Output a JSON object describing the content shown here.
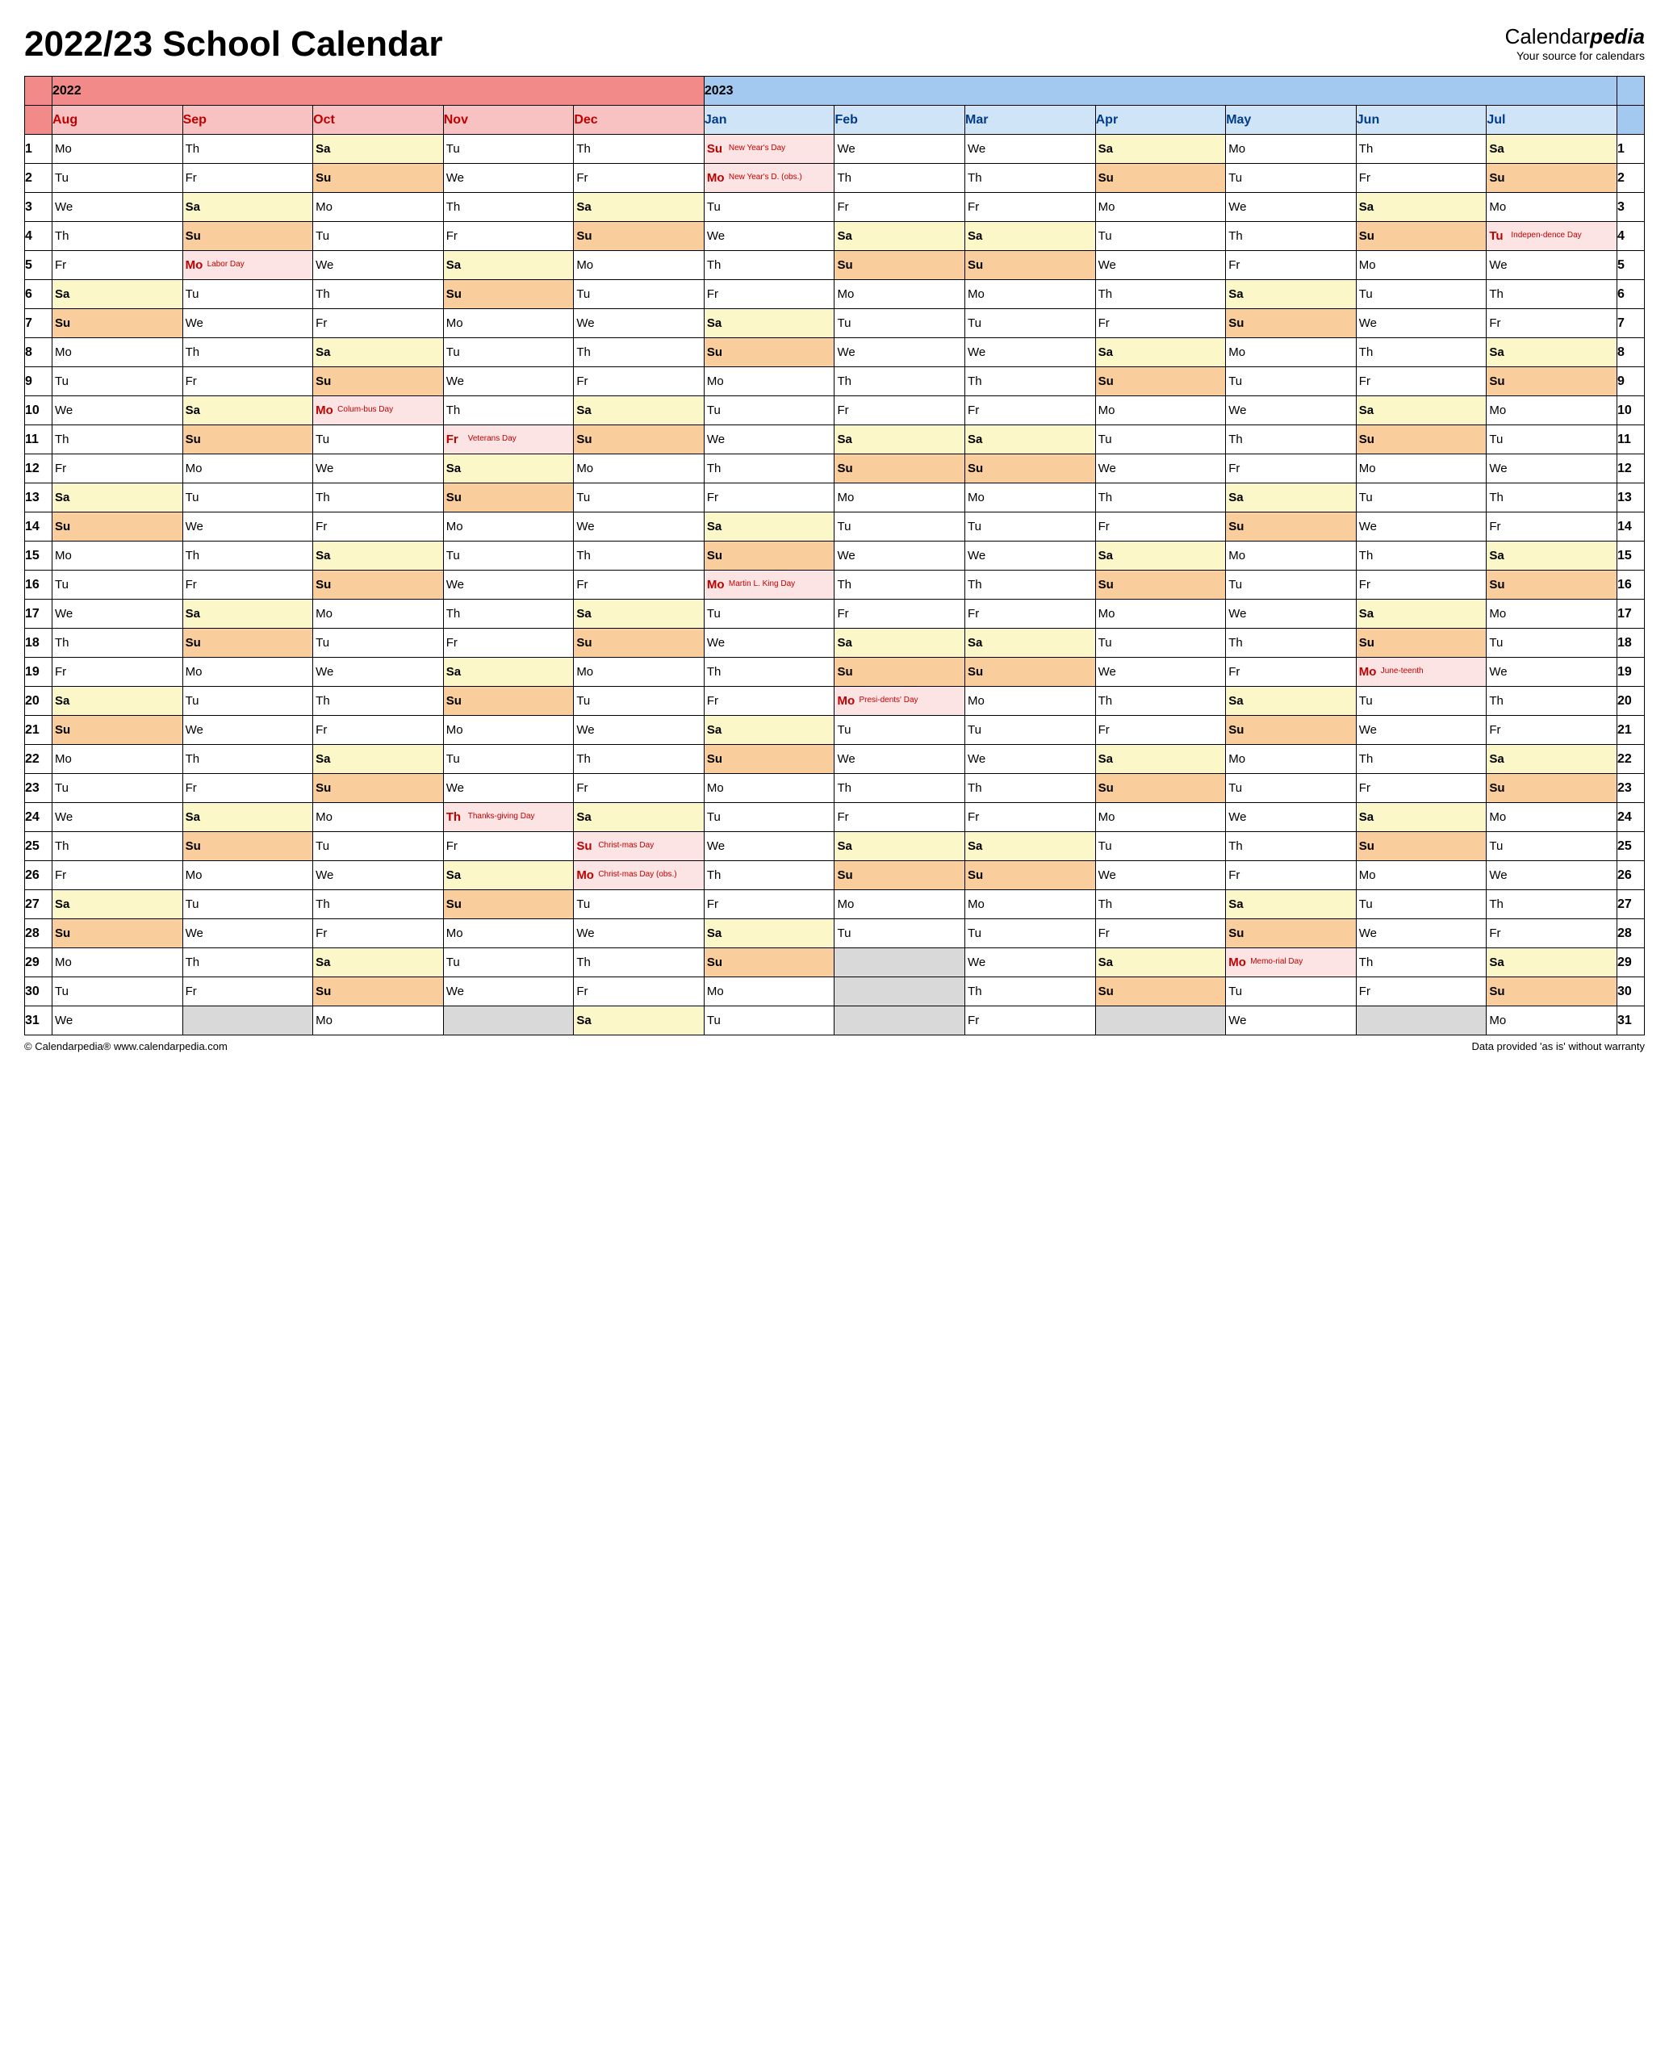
{
  "title": "2022/23 School Calendar",
  "brand": {
    "name_a": "Calendar",
    "name_b": "pedia",
    "tagline": "Your source for calendars"
  },
  "footer": {
    "left": "© Calendarpedia®   www.calendarpedia.com",
    "right": "Data provided 'as is' without warranty"
  },
  "colors": {
    "year_2022": "#f28a8a",
    "year_2023": "#a3c9f0",
    "month_2022": "#f9c2c2",
    "month_2023": "#d0e4f7",
    "sat": "#fcf7c9",
    "sun": "#f9cd9c",
    "hol": "#fde4e4",
    "empty": "#d9d9d9",
    "red": "#c00000",
    "blue": "#003c8a"
  },
  "years": {
    "a": "2022",
    "b": "2023"
  },
  "months": [
    "Aug",
    "Sep",
    "Oct",
    "Nov",
    "Dec",
    "Jan",
    "Feb",
    "Mar",
    "Apr",
    "May",
    "Jun",
    "Jul"
  ],
  "month_year": [
    2022,
    2022,
    2022,
    2022,
    2022,
    2023,
    2023,
    2023,
    2023,
    2023,
    2023,
    2023
  ],
  "days": 31,
  "grid": [
    [
      [
        "Mo"
      ],
      [
        "Th"
      ],
      [
        "Sa",
        "s"
      ],
      [
        "Tu"
      ],
      [
        "Th"
      ],
      [
        "Su",
        "h",
        "New Year's Day"
      ],
      [
        "We"
      ],
      [
        "We"
      ],
      [
        "Sa",
        "s"
      ],
      [
        "Mo"
      ],
      [
        "Th"
      ],
      [
        "Sa",
        "s"
      ]
    ],
    [
      [
        "Tu"
      ],
      [
        "Fr"
      ],
      [
        "Su",
        "u"
      ],
      [
        "We"
      ],
      [
        "Fr"
      ],
      [
        "Mo",
        "h",
        "New Year's D. (obs.)"
      ],
      [
        "Th"
      ],
      [
        "Th"
      ],
      [
        "Su",
        "u"
      ],
      [
        "Tu"
      ],
      [
        "Fr"
      ],
      [
        "Su",
        "u"
      ]
    ],
    [
      [
        "We"
      ],
      [
        "Sa",
        "s"
      ],
      [
        "Mo"
      ],
      [
        "Th"
      ],
      [
        "Sa",
        "s"
      ],
      [
        "Tu"
      ],
      [
        "Fr"
      ],
      [
        "Fr"
      ],
      [
        "Mo"
      ],
      [
        "We"
      ],
      [
        "Sa",
        "s"
      ],
      [
        "Mo"
      ]
    ],
    [
      [
        "Th"
      ],
      [
        "Su",
        "u"
      ],
      [
        "Tu"
      ],
      [
        "Fr"
      ],
      [
        "Su",
        "u"
      ],
      [
        "We"
      ],
      [
        "Sa",
        "s"
      ],
      [
        "Sa",
        "s"
      ],
      [
        "Tu"
      ],
      [
        "Th"
      ],
      [
        "Su",
        "u"
      ],
      [
        "Tu",
        "h",
        "Indepen-dence Day"
      ]
    ],
    [
      [
        "Fr"
      ],
      [
        "Mo",
        "h",
        "Labor Day"
      ],
      [
        "We"
      ],
      [
        "Sa",
        "s"
      ],
      [
        "Mo"
      ],
      [
        "Th"
      ],
      [
        "Su",
        "u"
      ],
      [
        "Su",
        "u"
      ],
      [
        "We"
      ],
      [
        "Fr"
      ],
      [
        "Mo"
      ],
      [
        "We"
      ]
    ],
    [
      [
        "Sa",
        "s"
      ],
      [
        "Tu"
      ],
      [
        "Th"
      ],
      [
        "Su",
        "u"
      ],
      [
        "Tu"
      ],
      [
        "Fr"
      ],
      [
        "Mo"
      ],
      [
        "Mo"
      ],
      [
        "Th"
      ],
      [
        "Sa",
        "s"
      ],
      [
        "Tu"
      ],
      [
        "Th"
      ]
    ],
    [
      [
        "Su",
        "u"
      ],
      [
        "We"
      ],
      [
        "Fr"
      ],
      [
        "Mo"
      ],
      [
        "We"
      ],
      [
        "Sa",
        "s"
      ],
      [
        "Tu"
      ],
      [
        "Tu"
      ],
      [
        "Fr"
      ],
      [
        "Su",
        "u"
      ],
      [
        "We"
      ],
      [
        "Fr"
      ]
    ],
    [
      [
        "Mo"
      ],
      [
        "Th"
      ],
      [
        "Sa",
        "s"
      ],
      [
        "Tu"
      ],
      [
        "Th"
      ],
      [
        "Su",
        "u"
      ],
      [
        "We"
      ],
      [
        "We"
      ],
      [
        "Sa",
        "s"
      ],
      [
        "Mo"
      ],
      [
        "Th"
      ],
      [
        "Sa",
        "s"
      ]
    ],
    [
      [
        "Tu"
      ],
      [
        "Fr"
      ],
      [
        "Su",
        "u"
      ],
      [
        "We"
      ],
      [
        "Fr"
      ],
      [
        "Mo"
      ],
      [
        "Th"
      ],
      [
        "Th"
      ],
      [
        "Su",
        "u"
      ],
      [
        "Tu"
      ],
      [
        "Fr"
      ],
      [
        "Su",
        "u"
      ]
    ],
    [
      [
        "We"
      ],
      [
        "Sa",
        "s"
      ],
      [
        "Mo",
        "h",
        "Colum-bus Day"
      ],
      [
        "Th"
      ],
      [
        "Sa",
        "s"
      ],
      [
        "Tu"
      ],
      [
        "Fr"
      ],
      [
        "Fr"
      ],
      [
        "Mo"
      ],
      [
        "We"
      ],
      [
        "Sa",
        "s"
      ],
      [
        "Mo"
      ]
    ],
    [
      [
        "Th"
      ],
      [
        "Su",
        "u"
      ],
      [
        "Tu"
      ],
      [
        "Fr",
        "h",
        "Veterans Day"
      ],
      [
        "Su",
        "u"
      ],
      [
        "We"
      ],
      [
        "Sa",
        "s"
      ],
      [
        "Sa",
        "s"
      ],
      [
        "Tu"
      ],
      [
        "Th"
      ],
      [
        "Su",
        "u"
      ],
      [
        "Tu"
      ]
    ],
    [
      [
        "Fr"
      ],
      [
        "Mo"
      ],
      [
        "We"
      ],
      [
        "Sa",
        "s"
      ],
      [
        "Mo"
      ],
      [
        "Th"
      ],
      [
        "Su",
        "u"
      ],
      [
        "Su",
        "u"
      ],
      [
        "We"
      ],
      [
        "Fr"
      ],
      [
        "Mo"
      ],
      [
        "We"
      ]
    ],
    [
      [
        "Sa",
        "s"
      ],
      [
        "Tu"
      ],
      [
        "Th"
      ],
      [
        "Su",
        "u"
      ],
      [
        "Tu"
      ],
      [
        "Fr"
      ],
      [
        "Mo"
      ],
      [
        "Mo"
      ],
      [
        "Th"
      ],
      [
        "Sa",
        "s"
      ],
      [
        "Tu"
      ],
      [
        "Th"
      ]
    ],
    [
      [
        "Su",
        "u"
      ],
      [
        "We"
      ],
      [
        "Fr"
      ],
      [
        "Mo"
      ],
      [
        "We"
      ],
      [
        "Sa",
        "s"
      ],
      [
        "Tu"
      ],
      [
        "Tu"
      ],
      [
        "Fr"
      ],
      [
        "Su",
        "u"
      ],
      [
        "We"
      ],
      [
        "Fr"
      ]
    ],
    [
      [
        "Mo"
      ],
      [
        "Th"
      ],
      [
        "Sa",
        "s"
      ],
      [
        "Tu"
      ],
      [
        "Th"
      ],
      [
        "Su",
        "u"
      ],
      [
        "We"
      ],
      [
        "We"
      ],
      [
        "Sa",
        "s"
      ],
      [
        "Mo"
      ],
      [
        "Th"
      ],
      [
        "Sa",
        "s"
      ]
    ],
    [
      [
        "Tu"
      ],
      [
        "Fr"
      ],
      [
        "Su",
        "u"
      ],
      [
        "We"
      ],
      [
        "Fr"
      ],
      [
        "Mo",
        "h",
        "Martin L. King Day"
      ],
      [
        "Th"
      ],
      [
        "Th"
      ],
      [
        "Su",
        "u"
      ],
      [
        "Tu"
      ],
      [
        "Fr"
      ],
      [
        "Su",
        "u"
      ]
    ],
    [
      [
        "We"
      ],
      [
        "Sa",
        "s"
      ],
      [
        "Mo"
      ],
      [
        "Th"
      ],
      [
        "Sa",
        "s"
      ],
      [
        "Tu"
      ],
      [
        "Fr"
      ],
      [
        "Fr"
      ],
      [
        "Mo"
      ],
      [
        "We"
      ],
      [
        "Sa",
        "s"
      ],
      [
        "Mo"
      ]
    ],
    [
      [
        "Th"
      ],
      [
        "Su",
        "u"
      ],
      [
        "Tu"
      ],
      [
        "Fr"
      ],
      [
        "Su",
        "u"
      ],
      [
        "We"
      ],
      [
        "Sa",
        "s"
      ],
      [
        "Sa",
        "s"
      ],
      [
        "Tu"
      ],
      [
        "Th"
      ],
      [
        "Su",
        "u"
      ],
      [
        "Tu"
      ]
    ],
    [
      [
        "Fr"
      ],
      [
        "Mo"
      ],
      [
        "We"
      ],
      [
        "Sa",
        "s"
      ],
      [
        "Mo"
      ],
      [
        "Th"
      ],
      [
        "Su",
        "u"
      ],
      [
        "Su",
        "u"
      ],
      [
        "We"
      ],
      [
        "Fr"
      ],
      [
        "Mo",
        "h",
        "June-teenth"
      ],
      [
        "We"
      ]
    ],
    [
      [
        "Sa",
        "s"
      ],
      [
        "Tu"
      ],
      [
        "Th"
      ],
      [
        "Su",
        "u"
      ],
      [
        "Tu"
      ],
      [
        "Fr"
      ],
      [
        "Mo",
        "h",
        "Presi-dents' Day"
      ],
      [
        "Mo"
      ],
      [
        "Th"
      ],
      [
        "Sa",
        "s"
      ],
      [
        "Tu"
      ],
      [
        "Th"
      ]
    ],
    [
      [
        "Su",
        "u"
      ],
      [
        "We"
      ],
      [
        "Fr"
      ],
      [
        "Mo"
      ],
      [
        "We"
      ],
      [
        "Sa",
        "s"
      ],
      [
        "Tu"
      ],
      [
        "Tu"
      ],
      [
        "Fr"
      ],
      [
        "Su",
        "u"
      ],
      [
        "We"
      ],
      [
        "Fr"
      ]
    ],
    [
      [
        "Mo"
      ],
      [
        "Th"
      ],
      [
        "Sa",
        "s"
      ],
      [
        "Tu"
      ],
      [
        "Th"
      ],
      [
        "Su",
        "u"
      ],
      [
        "We"
      ],
      [
        "We"
      ],
      [
        "Sa",
        "s"
      ],
      [
        "Mo"
      ],
      [
        "Th"
      ],
      [
        "Sa",
        "s"
      ]
    ],
    [
      [
        "Tu"
      ],
      [
        "Fr"
      ],
      [
        "Su",
        "u"
      ],
      [
        "We"
      ],
      [
        "Fr"
      ],
      [
        "Mo"
      ],
      [
        "Th"
      ],
      [
        "Th"
      ],
      [
        "Su",
        "u"
      ],
      [
        "Tu"
      ],
      [
        "Fr"
      ],
      [
        "Su",
        "u"
      ]
    ],
    [
      [
        "We"
      ],
      [
        "Sa",
        "s"
      ],
      [
        "Mo"
      ],
      [
        "Th",
        "h",
        "Thanks-giving Day"
      ],
      [
        "Sa",
        "s"
      ],
      [
        "Tu"
      ],
      [
        "Fr"
      ],
      [
        "Fr"
      ],
      [
        "Mo"
      ],
      [
        "We"
      ],
      [
        "Sa",
        "s"
      ],
      [
        "Mo"
      ]
    ],
    [
      [
        "Th"
      ],
      [
        "Su",
        "u"
      ],
      [
        "Tu"
      ],
      [
        "Fr"
      ],
      [
        "Su",
        "h",
        "Christ-mas Day"
      ],
      [
        "We"
      ],
      [
        "Sa",
        "s"
      ],
      [
        "Sa",
        "s"
      ],
      [
        "Tu"
      ],
      [
        "Th"
      ],
      [
        "Su",
        "u"
      ],
      [
        "Tu"
      ]
    ],
    [
      [
        "Fr"
      ],
      [
        "Mo"
      ],
      [
        "We"
      ],
      [
        "Sa",
        "s"
      ],
      [
        "Mo",
        "h",
        "Christ-mas Day (obs.)"
      ],
      [
        "Th"
      ],
      [
        "Su",
        "u"
      ],
      [
        "Su",
        "u"
      ],
      [
        "We"
      ],
      [
        "Fr"
      ],
      [
        "Mo"
      ],
      [
        "We"
      ]
    ],
    [
      [
        "Sa",
        "s"
      ],
      [
        "Tu"
      ],
      [
        "Th"
      ],
      [
        "Su",
        "u"
      ],
      [
        "Tu"
      ],
      [
        "Fr"
      ],
      [
        "Mo"
      ],
      [
        "Mo"
      ],
      [
        "Th"
      ],
      [
        "Sa",
        "s"
      ],
      [
        "Tu"
      ],
      [
        "Th"
      ]
    ],
    [
      [
        "Su",
        "u"
      ],
      [
        "We"
      ],
      [
        "Fr"
      ],
      [
        "Mo"
      ],
      [
        "We"
      ],
      [
        "Sa",
        "s"
      ],
      [
        "Tu"
      ],
      [
        "Tu"
      ],
      [
        "Fr"
      ],
      [
        "Su",
        "u"
      ],
      [
        "We"
      ],
      [
        "Fr"
      ]
    ],
    [
      [
        "Mo"
      ],
      [
        "Th"
      ],
      [
        "Sa",
        "s"
      ],
      [
        "Tu"
      ],
      [
        "Th"
      ],
      [
        "Su",
        "u"
      ],
      [
        "",
        "e"
      ],
      [
        "We"
      ],
      [
        "Sa",
        "s"
      ],
      [
        "Mo",
        "h",
        "Memo-rial Day"
      ],
      [
        "Th"
      ],
      [
        "Sa",
        "s"
      ]
    ],
    [
      [
        "Tu"
      ],
      [
        "Fr"
      ],
      [
        "Su",
        "u"
      ],
      [
        "We"
      ],
      [
        "Fr"
      ],
      [
        "Mo"
      ],
      [
        "",
        "e"
      ],
      [
        "Th"
      ],
      [
        "Su",
        "u"
      ],
      [
        "Tu"
      ],
      [
        "Fr"
      ],
      [
        "Su",
        "u"
      ]
    ],
    [
      [
        "We"
      ],
      [
        "",
        "e"
      ],
      [
        "Mo"
      ],
      [
        "",
        "e"
      ],
      [
        "Sa",
        "s"
      ],
      [
        "Tu"
      ],
      [
        "",
        "e"
      ],
      [
        "Fr"
      ],
      [
        "",
        "e"
      ],
      [
        "We"
      ],
      [
        "",
        "e"
      ],
      [
        "Mo"
      ]
    ]
  ]
}
